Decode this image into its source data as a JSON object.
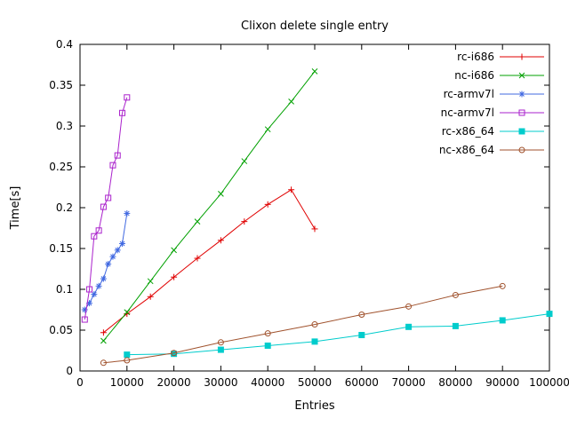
{
  "chart_data": {
    "type": "line",
    "title": "Clixon delete single entry",
    "xlabel": "Entries",
    "ylabel": "Time[s]",
    "xlim": [
      0,
      100000
    ],
    "ylim": [
      0,
      0.4
    ],
    "grid": false,
    "legend_position": "top-right-inside",
    "x_ticks": {
      "values": [
        0,
        10000,
        20000,
        30000,
        40000,
        50000,
        60000,
        70000,
        80000,
        90000,
        100000
      ],
      "labels": [
        "0",
        "10000",
        "20000",
        "30000",
        "40000",
        "50000",
        "60000",
        "70000",
        "80000",
        "90000",
        "100000"
      ]
    },
    "y_ticks": {
      "values": [
        0,
        0.05,
        0.1,
        0.15,
        0.2,
        0.25,
        0.3,
        0.35,
        0.4
      ],
      "labels": [
        "0",
        "0.05",
        "0.1",
        "0.15",
        "0.2",
        "0.25",
        "0.3",
        "0.35",
        "0.4"
      ]
    },
    "series": [
      {
        "name": "rc-i686",
        "color": "#e00000",
        "marker": "plus",
        "x": [
          5000,
          10000,
          15000,
          20000,
          25000,
          30000,
          35000,
          40000,
          45000,
          50000
        ],
        "y": [
          0.047,
          0.07,
          0.091,
          0.115,
          0.138,
          0.16,
          0.183,
          0.204,
          0.222,
          0.174
        ]
      },
      {
        "name": "nc-i686",
        "color": "#00a000",
        "marker": "cross",
        "x": [
          5000,
          10000,
          15000,
          20000,
          25000,
          30000,
          35000,
          40000,
          45000,
          50000
        ],
        "y": [
          0.037,
          0.072,
          0.11,
          0.148,
          0.183,
          0.217,
          0.257,
          0.296,
          0.33,
          0.367
        ]
      },
      {
        "name": "rc-armv7l",
        "color": "#4169e1",
        "marker": "asterisk",
        "x": [
          1000,
          2000,
          3000,
          4000,
          5000,
          6000,
          7000,
          8000,
          9000,
          10000
        ],
        "y": [
          0.075,
          0.083,
          0.094,
          0.104,
          0.113,
          0.131,
          0.14,
          0.148,
          0.156,
          0.193
        ]
      },
      {
        "name": "nc-armv7l",
        "color": "#aa22cc",
        "marker": "square-open",
        "x": [
          1000,
          2000,
          3000,
          4000,
          5000,
          6000,
          7000,
          8000,
          9000,
          10000
        ],
        "y": [
          0.063,
          0.1,
          0.165,
          0.172,
          0.201,
          0.212,
          0.252,
          0.264,
          0.316,
          0.335
        ]
      },
      {
        "name": "rc-x86_64",
        "color": "#00cccc",
        "marker": "square-filled",
        "x": [
          10000,
          20000,
          30000,
          40000,
          50000,
          60000,
          70000,
          80000,
          90000,
          100000
        ],
        "y": [
          0.02,
          0.021,
          0.026,
          0.031,
          0.036,
          0.044,
          0.054,
          0.055,
          0.062,
          0.07
        ]
      },
      {
        "name": "nc-x86_64",
        "color": "#a0522d",
        "marker": "circle-open",
        "x": [
          5000,
          10000,
          20000,
          30000,
          40000,
          50000,
          60000,
          70000,
          80000,
          90000
        ],
        "y": [
          0.01,
          0.013,
          0.022,
          0.035,
          0.046,
          0.057,
          0.069,
          0.079,
          0.093,
          0.104
        ]
      }
    ]
  }
}
